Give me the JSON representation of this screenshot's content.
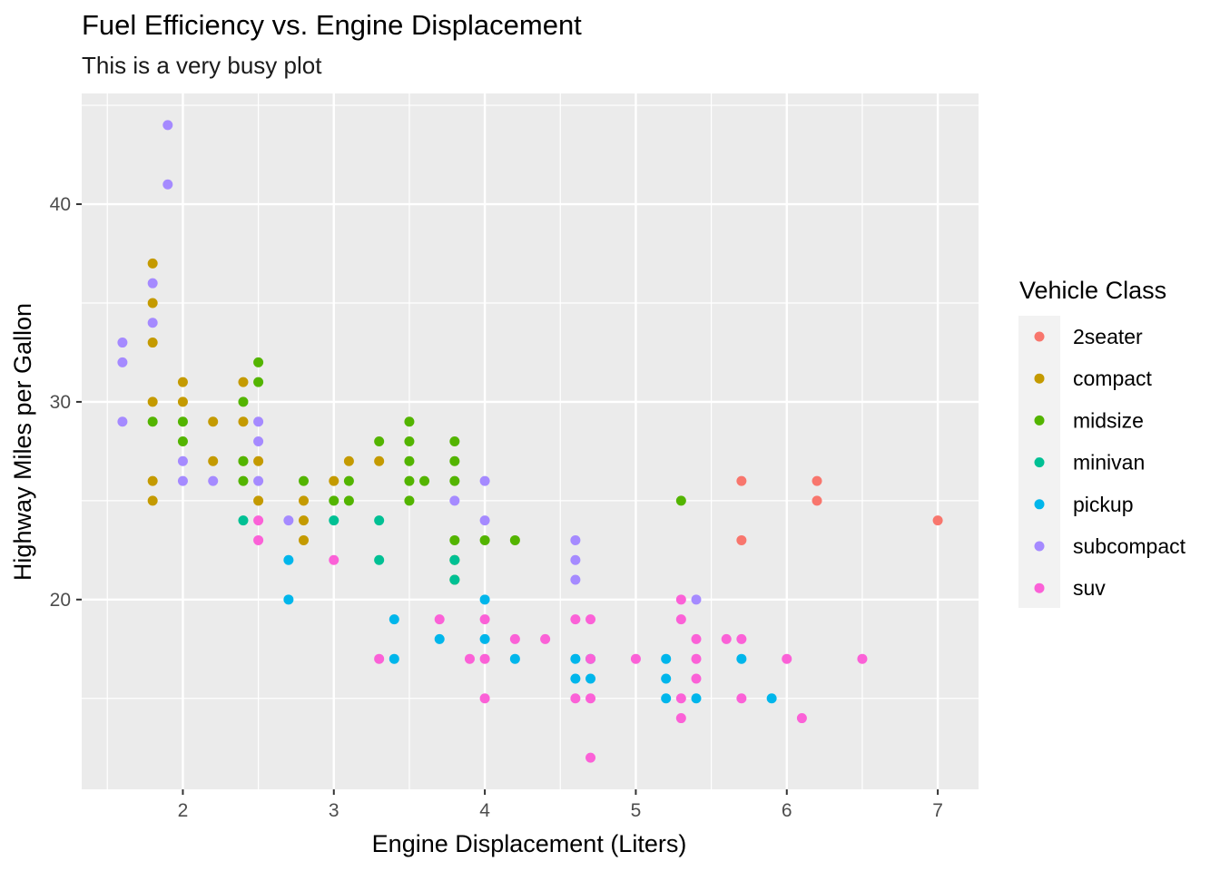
{
  "chart_data": {
    "type": "scatter",
    "title": "Fuel Efficiency vs. Engine Displacement",
    "subtitle": "This is a very busy plot",
    "xlabel": "Engine Displacement (Liters)",
    "ylabel": "Highway Miles per Gallon",
    "xlim": [
      1.33,
      7.27
    ],
    "ylim": [
      10.4,
      45.6
    ],
    "xticks": [
      2,
      3,
      4,
      5,
      6,
      7
    ],
    "yticks": [
      20,
      30,
      40
    ],
    "xminor": [
      1.5,
      2.5,
      3.5,
      4.5,
      5.5,
      6.5
    ],
    "yminor": [
      15,
      25,
      35,
      45
    ],
    "grid": true,
    "legend": {
      "title": "Vehicle Class",
      "position": "right",
      "entries": [
        {
          "name": "2seater",
          "color": "#F8766D"
        },
        {
          "name": "compact",
          "color": "#C49A00"
        },
        {
          "name": "midsize",
          "color": "#53B400"
        },
        {
          "name": "minivan",
          "color": "#00C094"
        },
        {
          "name": "pickup",
          "color": "#00B6EB"
        },
        {
          "name": "subcompact",
          "color": "#A58AFF"
        },
        {
          "name": "suv",
          "color": "#FB61D7"
        }
      ]
    },
    "series": [
      {
        "name": "2seater",
        "color": "#F8766D",
        "points": [
          [
            5.7,
            26
          ],
          [
            5.7,
            23
          ],
          [
            6.2,
            26
          ],
          [
            6.2,
            25
          ],
          [
            7.0,
            24
          ]
        ]
      },
      {
        "name": "compact",
        "color": "#C49A00",
        "points": [
          [
            1.8,
            37
          ],
          [
            1.8,
            35
          ],
          [
            1.8,
            33
          ],
          [
            1.8,
            30
          ],
          [
            1.8,
            26
          ],
          [
            1.8,
            25
          ],
          [
            2.0,
            31
          ],
          [
            2.0,
            30
          ],
          [
            2.2,
            29
          ],
          [
            2.2,
            27
          ],
          [
            2.4,
            31
          ],
          [
            2.4,
            29
          ],
          [
            2.4,
            27
          ],
          [
            2.5,
            27
          ],
          [
            2.5,
            25
          ],
          [
            2.8,
            25
          ],
          [
            2.8,
            24
          ],
          [
            2.8,
            23
          ],
          [
            3.0,
            26
          ],
          [
            3.1,
            27
          ],
          [
            3.3,
            27
          ]
        ]
      },
      {
        "name": "midsize",
        "color": "#53B400",
        "points": [
          [
            1.8,
            29
          ],
          [
            2.0,
            29
          ],
          [
            2.0,
            28
          ],
          [
            2.4,
            30
          ],
          [
            2.4,
            27
          ],
          [
            2.4,
            26
          ],
          [
            2.5,
            32
          ],
          [
            2.5,
            31
          ],
          [
            2.8,
            26
          ],
          [
            3.0,
            25
          ],
          [
            3.1,
            26
          ],
          [
            3.1,
            25
          ],
          [
            3.3,
            28
          ],
          [
            3.5,
            29
          ],
          [
            3.5,
            28
          ],
          [
            3.5,
            27
          ],
          [
            3.5,
            26
          ],
          [
            3.5,
            25
          ],
          [
            3.6,
            26
          ],
          [
            3.8,
            28
          ],
          [
            3.8,
            27
          ],
          [
            3.8,
            26
          ],
          [
            3.8,
            23
          ],
          [
            3.8,
            22
          ],
          [
            3.8,
            21
          ],
          [
            4.0,
            23
          ],
          [
            4.2,
            23
          ],
          [
            5.3,
            25
          ]
        ]
      },
      {
        "name": "minivan",
        "color": "#00C094",
        "points": [
          [
            2.4,
            24
          ],
          [
            3.0,
            24
          ],
          [
            3.3,
            24
          ],
          [
            3.3,
            22
          ],
          [
            3.8,
            22
          ],
          [
            3.8,
            21
          ]
        ]
      },
      {
        "name": "pickup",
        "color": "#00B6EB",
        "points": [
          [
            2.7,
            22
          ],
          [
            2.7,
            20
          ],
          [
            3.4,
            19
          ],
          [
            3.4,
            17
          ],
          [
            3.7,
            18
          ],
          [
            4.0,
            20
          ],
          [
            4.0,
            18
          ],
          [
            4.2,
            17
          ],
          [
            4.6,
            17
          ],
          [
            4.6,
            16
          ],
          [
            4.7,
            17
          ],
          [
            4.7,
            16
          ],
          [
            5.2,
            17
          ],
          [
            5.2,
            16
          ],
          [
            5.2,
            15
          ],
          [
            5.4,
            15
          ],
          [
            5.7,
            17
          ],
          [
            5.9,
            15
          ]
        ]
      },
      {
        "name": "subcompact",
        "color": "#A58AFF",
        "points": [
          [
            1.6,
            33
          ],
          [
            1.6,
            32
          ],
          [
            1.6,
            29
          ],
          [
            1.8,
            36
          ],
          [
            1.8,
            34
          ],
          [
            1.9,
            44
          ],
          [
            1.9,
            41
          ],
          [
            2.0,
            27
          ],
          [
            2.0,
            26
          ],
          [
            2.2,
            26
          ],
          [
            2.5,
            29
          ],
          [
            2.5,
            28
          ],
          [
            2.5,
            26
          ],
          [
            2.7,
            24
          ],
          [
            3.8,
            25
          ],
          [
            4.0,
            26
          ],
          [
            4.0,
            24
          ],
          [
            4.6,
            23
          ],
          [
            4.6,
            22
          ],
          [
            4.6,
            21
          ],
          [
            5.4,
            20
          ]
        ]
      },
      {
        "name": "suv",
        "color": "#FB61D7",
        "points": [
          [
            2.5,
            24
          ],
          [
            2.5,
            23
          ],
          [
            3.0,
            22
          ],
          [
            3.3,
            17
          ],
          [
            3.7,
            19
          ],
          [
            3.9,
            17
          ],
          [
            4.0,
            19
          ],
          [
            4.0,
            17
          ],
          [
            4.0,
            15
          ],
          [
            4.2,
            18
          ],
          [
            4.4,
            18
          ],
          [
            4.6,
            19
          ],
          [
            4.6,
            15
          ],
          [
            4.7,
            19
          ],
          [
            4.7,
            17
          ],
          [
            4.7,
            15
          ],
          [
            4.7,
            12
          ],
          [
            5.0,
            17
          ],
          [
            5.3,
            20
          ],
          [
            5.3,
            19
          ],
          [
            5.3,
            15
          ],
          [
            5.3,
            14
          ],
          [
            5.4,
            18
          ],
          [
            5.4,
            17
          ],
          [
            5.4,
            16
          ],
          [
            5.6,
            18
          ],
          [
            5.7,
            18
          ],
          [
            5.7,
            15
          ],
          [
            6.0,
            17
          ],
          [
            6.1,
            14
          ],
          [
            6.5,
            17
          ]
        ]
      }
    ]
  }
}
